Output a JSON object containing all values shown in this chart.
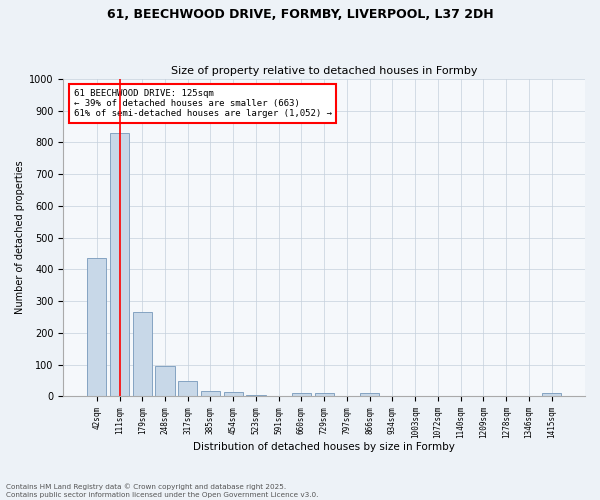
{
  "title_line1": "61, BEECHWOOD DRIVE, FORMBY, LIVERPOOL, L37 2DH",
  "title_line2": "Size of property relative to detached houses in Formby",
  "xlabel": "Distribution of detached houses by size in Formby",
  "ylabel": "Number of detached properties",
  "categories": [
    "42sqm",
    "111sqm",
    "179sqm",
    "248sqm",
    "317sqm",
    "385sqm",
    "454sqm",
    "523sqm",
    "591sqm",
    "660sqm",
    "729sqm",
    "797sqm",
    "866sqm",
    "934sqm",
    "1003sqm",
    "1072sqm",
    "1140sqm",
    "1209sqm",
    "1278sqm",
    "1346sqm",
    "1415sqm"
  ],
  "values": [
    435,
    830,
    265,
    95,
    47,
    18,
    12,
    5,
    0,
    10,
    10,
    0,
    10,
    0,
    0,
    0,
    0,
    0,
    0,
    0,
    10
  ],
  "bar_color": "#c8d8e8",
  "bar_edge_color": "#7799bb",
  "property_line_x": 1.0,
  "annotation_text": "61 BEECHWOOD DRIVE: 125sqm\n← 39% of detached houses are smaller (663)\n61% of semi-detached houses are larger (1,052) →",
  "annotation_box_color": "white",
  "annotation_box_edge_color": "red",
  "vline_color": "red",
  "ylim": [
    0,
    1000
  ],
  "yticks": [
    0,
    100,
    200,
    300,
    400,
    500,
    600,
    700,
    800,
    900,
    1000
  ],
  "footer_line1": "Contains HM Land Registry data © Crown copyright and database right 2025.",
  "footer_line2": "Contains public sector information licensed under the Open Government Licence v3.0.",
  "bg_color": "#edf2f7",
  "plot_bg_color": "#f5f8fb",
  "grid_color": "#c5d0dc"
}
